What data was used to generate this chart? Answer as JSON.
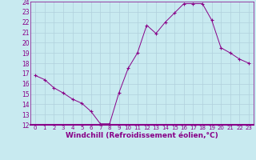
{
  "x": [
    0,
    1,
    2,
    3,
    4,
    5,
    6,
    7,
    8,
    9,
    10,
    11,
    12,
    13,
    14,
    15,
    16,
    17,
    18,
    19,
    20,
    21,
    22,
    23
  ],
  "y": [
    16.8,
    16.4,
    15.6,
    15.1,
    14.5,
    14.1,
    13.3,
    12.1,
    12.1,
    15.1,
    17.5,
    19.0,
    21.7,
    20.9,
    22.0,
    22.9,
    23.8,
    23.8,
    23.8,
    22.2,
    19.5,
    19.0,
    18.4,
    18.0
  ],
  "line_color": "#880088",
  "marker": "+",
  "marker_size": 3,
  "marker_linewidth": 0.8,
  "linewidth": 0.7,
  "xlabel": "Windchill (Refroidissement éolien,°C)",
  "xlabel_fontsize": 6.5,
  "bg_color": "#c8eaf0",
  "grid_color": "#b0d0dc",
  "tick_color": "#880088",
  "label_color": "#880088",
  "spine_color": "#880088",
  "ylim": [
    12,
    24
  ],
  "xlim": [
    -0.5,
    23.5
  ],
  "yticks": [
    12,
    13,
    14,
    15,
    16,
    17,
    18,
    19,
    20,
    21,
    22,
    23,
    24
  ],
  "xticks": [
    0,
    1,
    2,
    3,
    4,
    5,
    6,
    7,
    8,
    9,
    10,
    11,
    12,
    13,
    14,
    15,
    16,
    17,
    18,
    19,
    20,
    21,
    22,
    23
  ],
  "tick_fontsize": 5.5,
  "xtick_fontsize": 5.0
}
